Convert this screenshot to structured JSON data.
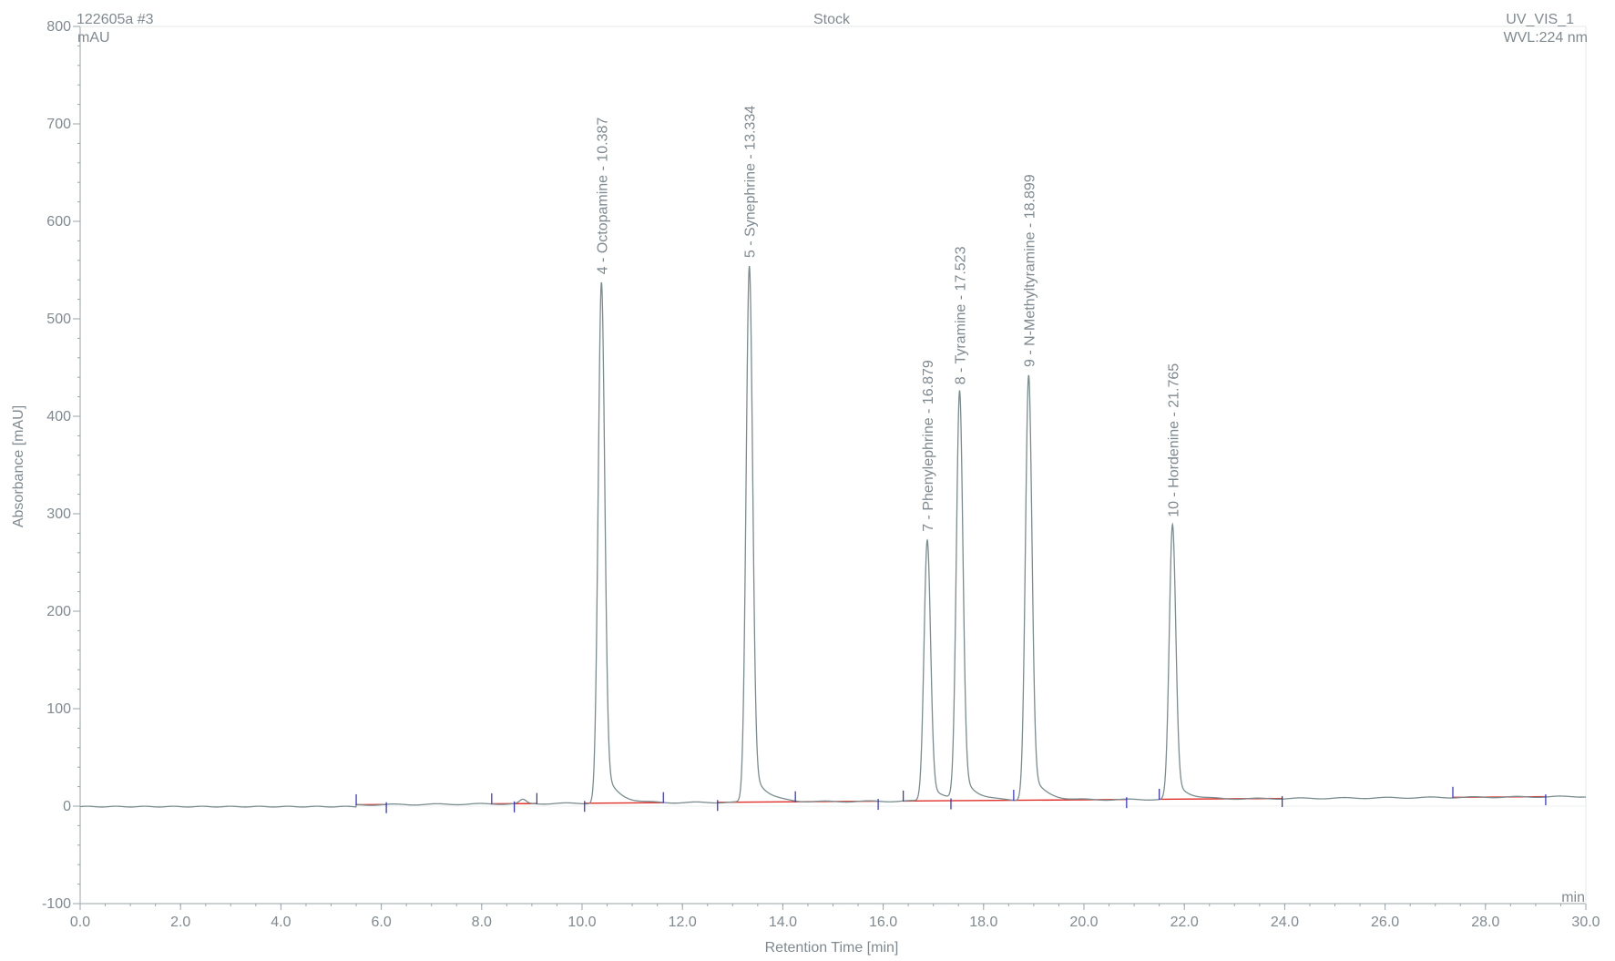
{
  "header": {
    "sample": "122605a #3",
    "title": "Stock",
    "channel": "UV_VIS_1",
    "wavelength": "WVL:224 nm",
    "y_unit": "mAU",
    "x_unit": "min"
  },
  "colors": {
    "trace": "#7a8c8e",
    "baseline": "#e0302a",
    "markers": "#2a2ad8",
    "axis": "#9aa4a8",
    "text": "#7f8a90"
  },
  "chart_data": {
    "type": "line",
    "xlabel": "Retention Time [min]",
    "ylabel": "Absorbance [mAU]",
    "xlim": [
      0,
      30
    ],
    "ylim": [
      -100,
      800
    ],
    "x_ticks": [
      "0.0",
      "2.0",
      "4.0",
      "6.0",
      "8.0",
      "10.0",
      "12.0",
      "14.0",
      "16.0",
      "18.0",
      "20.0",
      "22.0",
      "24.0",
      "26.0",
      "28.0",
      "30.0"
    ],
    "y_ticks": [
      "-100",
      "0",
      "100",
      "200",
      "300",
      "400",
      "500",
      "600",
      "700",
      "800"
    ],
    "peaks": [
      {
        "label": "4 - Octopamine - 10.387",
        "rt": 10.387,
        "height": 538
      },
      {
        "label": "5 - Synephrine - 13.334",
        "rt": 13.334,
        "height": 555
      },
      {
        "label": "7 - Phenylephrine - 16.879",
        "rt": 16.879,
        "height": 274
      },
      {
        "label": "8 - Tyramine - 17.523",
        "rt": 17.523,
        "height": 425
      },
      {
        "label": "9 - N-Methyltyramine - 18.899",
        "rt": 18.899,
        "height": 443
      },
      {
        "label": "10 - Hordenine - 21.765",
        "rt": 21.765,
        "height": 289
      }
    ],
    "baseline_segments": [
      [
        5.5,
        6.1
      ],
      [
        8.2,
        9.1
      ],
      [
        10.05,
        11.62
      ],
      [
        12.7,
        14.25
      ],
      [
        14.25,
        15.9
      ],
      [
        16.4,
        18.6
      ],
      [
        18.6,
        20.85
      ],
      [
        21.5,
        23.95
      ],
      [
        27.35,
        29.2
      ]
    ],
    "integration_marks": [
      5.5,
      6.1,
      8.2,
      8.65,
      9.1,
      10.05,
      11.62,
      12.7,
      14.25,
      15.9,
      16.4,
      17.35,
      18.6,
      20.85,
      21.5,
      23.95,
      27.35,
      29.2
    ]
  }
}
